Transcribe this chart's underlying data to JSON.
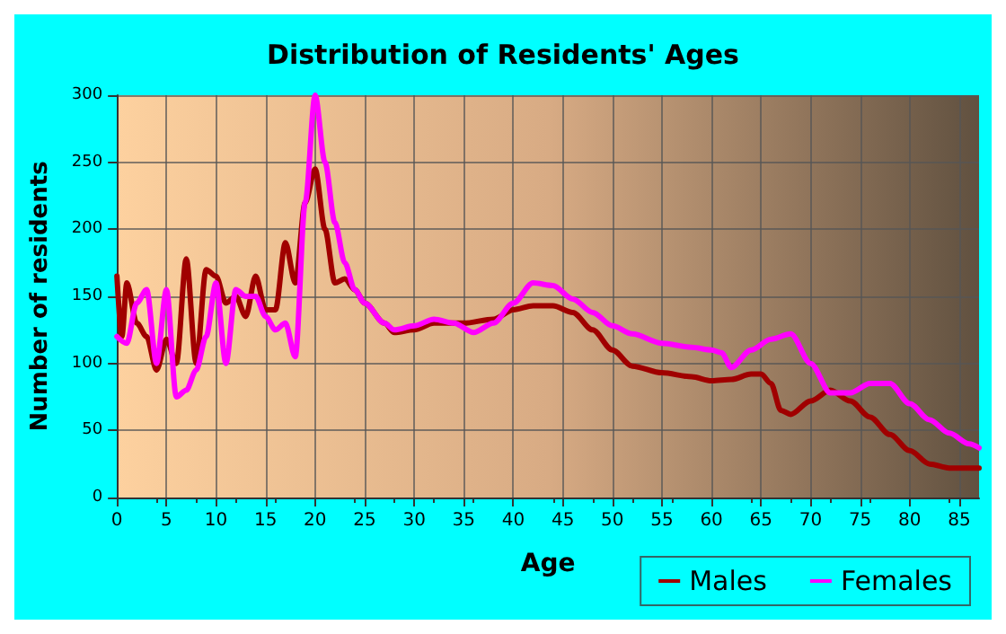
{
  "chart_data": {
    "type": "line",
    "title": "Distribution of Residents' Ages",
    "xlabel": "Age",
    "ylabel": "Number of residents",
    "xlim": [
      0,
      87
    ],
    "xticks": [
      0,
      5,
      10,
      15,
      20,
      25,
      30,
      35,
      40,
      45,
      50,
      55,
      60,
      65,
      70,
      75,
      80,
      85
    ],
    "ylim": [
      0,
      300
    ],
    "yticks": [
      0,
      50,
      100,
      150,
      200,
      250,
      300
    ],
    "grid": true,
    "legend": "bottom right",
    "marker": "none",
    "line_style": "solid",
    "series": [
      {
        "name": "Males",
        "color": "#a00000",
        "x": [
          0,
          0.5,
          1,
          2,
          3,
          4,
          5,
          6,
          7,
          8,
          9,
          10,
          11,
          12,
          13,
          14,
          15,
          16,
          17,
          18,
          19,
          20,
          21,
          22,
          23,
          24,
          25,
          27,
          28,
          30,
          32,
          35,
          38,
          40,
          42,
          44,
          46,
          48,
          50,
          52,
          55,
          58,
          60,
          62,
          64,
          65,
          66,
          67,
          68,
          70,
          72,
          74,
          76,
          78,
          80,
          82,
          84,
          86,
          87
        ],
        "values": [
          165,
          120,
          160,
          130,
          120,
          95,
          118,
          100,
          178,
          100,
          170,
          165,
          145,
          150,
          135,
          165,
          140,
          140,
          190,
          160,
          220,
          245,
          200,
          160,
          163,
          155,
          145,
          130,
          123,
          125,
          130,
          130,
          133,
          140,
          143,
          143,
          138,
          125,
          110,
          98,
          93,
          90,
          87,
          88,
          92,
          92,
          85,
          65,
          62,
          72,
          80,
          72,
          60,
          47,
          35,
          25,
          22,
          22,
          22
        ]
      },
      {
        "name": "Females",
        "color": "#ff00ff",
        "x": [
          0,
          1,
          2,
          3,
          4,
          5,
          6,
          7,
          8,
          9,
          10,
          11,
          12,
          13,
          14,
          15,
          16,
          17,
          18,
          19,
          20,
          21,
          22,
          23,
          24,
          25,
          27,
          28,
          30,
          32,
          34,
          36,
          38,
          40,
          42,
          44,
          46,
          48,
          50,
          52,
          55,
          58,
          60,
          61,
          62,
          64,
          66,
          68,
          70,
          72,
          74,
          76,
          78,
          80,
          82,
          84,
          86,
          87
        ],
        "values": [
          120,
          115,
          145,
          155,
          100,
          155,
          75,
          80,
          95,
          120,
          160,
          100,
          155,
          150,
          150,
          135,
          125,
          130,
          105,
          220,
          300,
          250,
          205,
          175,
          155,
          145,
          130,
          125,
          128,
          133,
          130,
          123,
          130,
          145,
          160,
          158,
          148,
          138,
          128,
          122,
          115,
          112,
          110,
          108,
          97,
          110,
          118,
          122,
          100,
          78,
          78,
          85,
          85,
          70,
          58,
          48,
          40,
          37
        ]
      }
    ]
  }
}
